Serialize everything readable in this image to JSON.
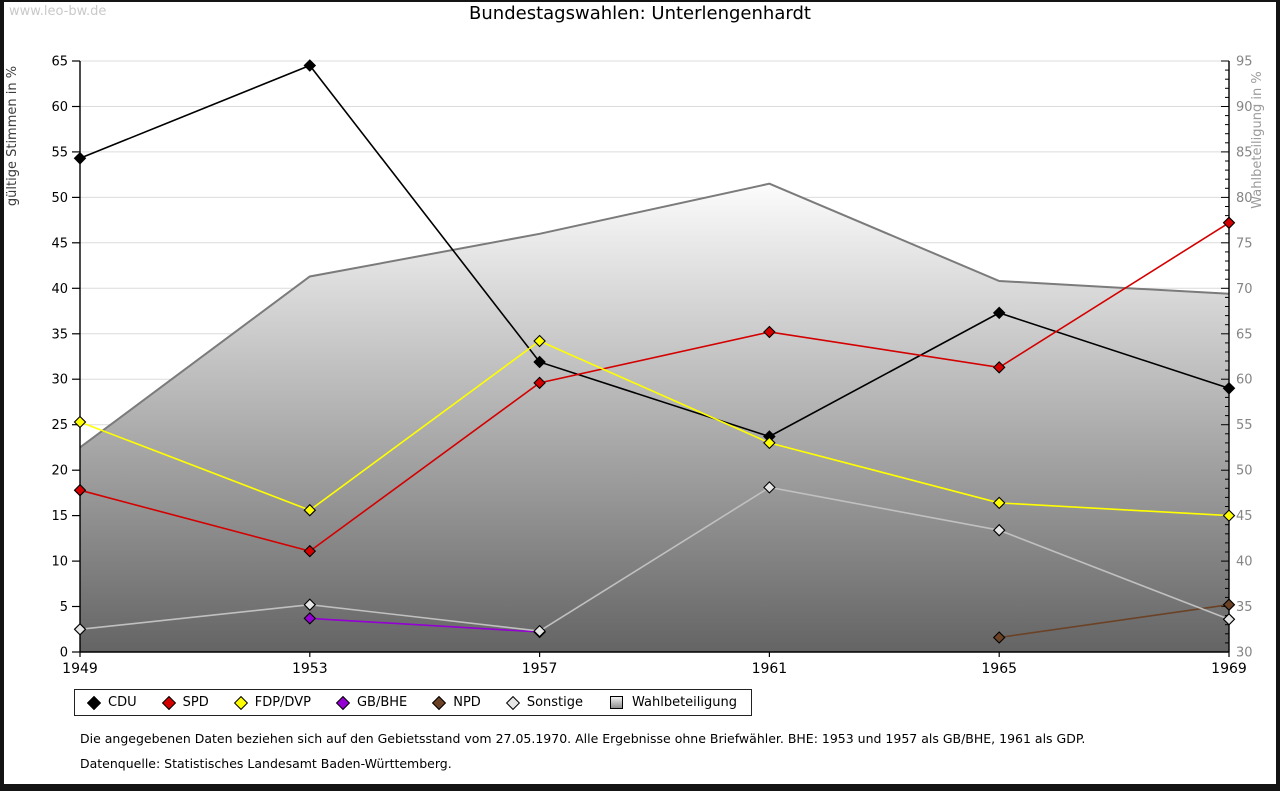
{
  "watermark": "www.leo-bw.de",
  "chart_data": {
    "type": "line",
    "title": "Bundestagswahlen: Unterlengenhardt",
    "x": [
      1949,
      1953,
      1957,
      1961,
      1965,
      1969
    ],
    "left_axis": {
      "label": "gültige Stimmen in %",
      "min": 0,
      "max": 65,
      "tick_step": 5
    },
    "right_axis": {
      "label": "Wahlbeteiligung in %",
      "min": 30,
      "max": 95,
      "tick_step": 5,
      "minor_step": 1
    },
    "grid": true,
    "legend_position": "bottom",
    "series": [
      {
        "name": "CDU",
        "color": "#000000",
        "marker_fill": "#000000",
        "axis": "left",
        "marker": "diamond",
        "values": [
          54.3,
          64.5,
          31.9,
          23.7,
          37.3,
          29.0
        ]
      },
      {
        "name": "SPD",
        "color": "#d40000",
        "marker_fill": "#d40000",
        "axis": "left",
        "marker": "diamond",
        "values": [
          17.8,
          11.1,
          29.6,
          35.2,
          31.3,
          47.2
        ]
      },
      {
        "name": "FDP/DVP",
        "color": "#ffff00",
        "marker_fill": "#ffff00",
        "axis": "left",
        "marker": "diamond",
        "values": [
          25.3,
          15.6,
          34.2,
          23.0,
          16.4,
          15.0
        ]
      },
      {
        "name": "GB/BHE",
        "color": "#9400d3",
        "marker_fill": "#9400d3",
        "axis": "left",
        "marker": "diamond",
        "values": [
          null,
          3.7,
          2.2,
          null,
          null,
          null
        ]
      },
      {
        "name": "NPD",
        "color": "#6b4226",
        "marker_fill": "#6b4226",
        "axis": "left",
        "marker": "diamond",
        "values": [
          null,
          null,
          null,
          null,
          1.6,
          5.2
        ]
      },
      {
        "name": "Sonstige",
        "color": "#c0c0c0",
        "marker_fill": "#e6e6e6",
        "axis": "left",
        "marker": "diamond",
        "values": [
          2.5,
          5.2,
          2.3,
          18.1,
          13.4,
          3.6
        ]
      }
    ],
    "area": {
      "name": "Wahlbeteiligung",
      "axis": "right",
      "values": [
        52.5,
        71.3,
        76.0,
        81.5,
        70.8,
        69.4
      ],
      "fill_top": "#fcfcfc",
      "fill_bottom": "#646464",
      "edge_color": "#7b7b7b"
    }
  },
  "footnotes": [
    "Die angegebenen Daten beziehen sich auf den Gebietsstand vom 27.05.1970. Alle Ergebnisse ohne Briefwähler. BHE: 1953 und 1957 als GB/BHE, 1961 als GDP.",
    "Datenquelle: Statistisches Landesamt Baden-Württemberg."
  ]
}
